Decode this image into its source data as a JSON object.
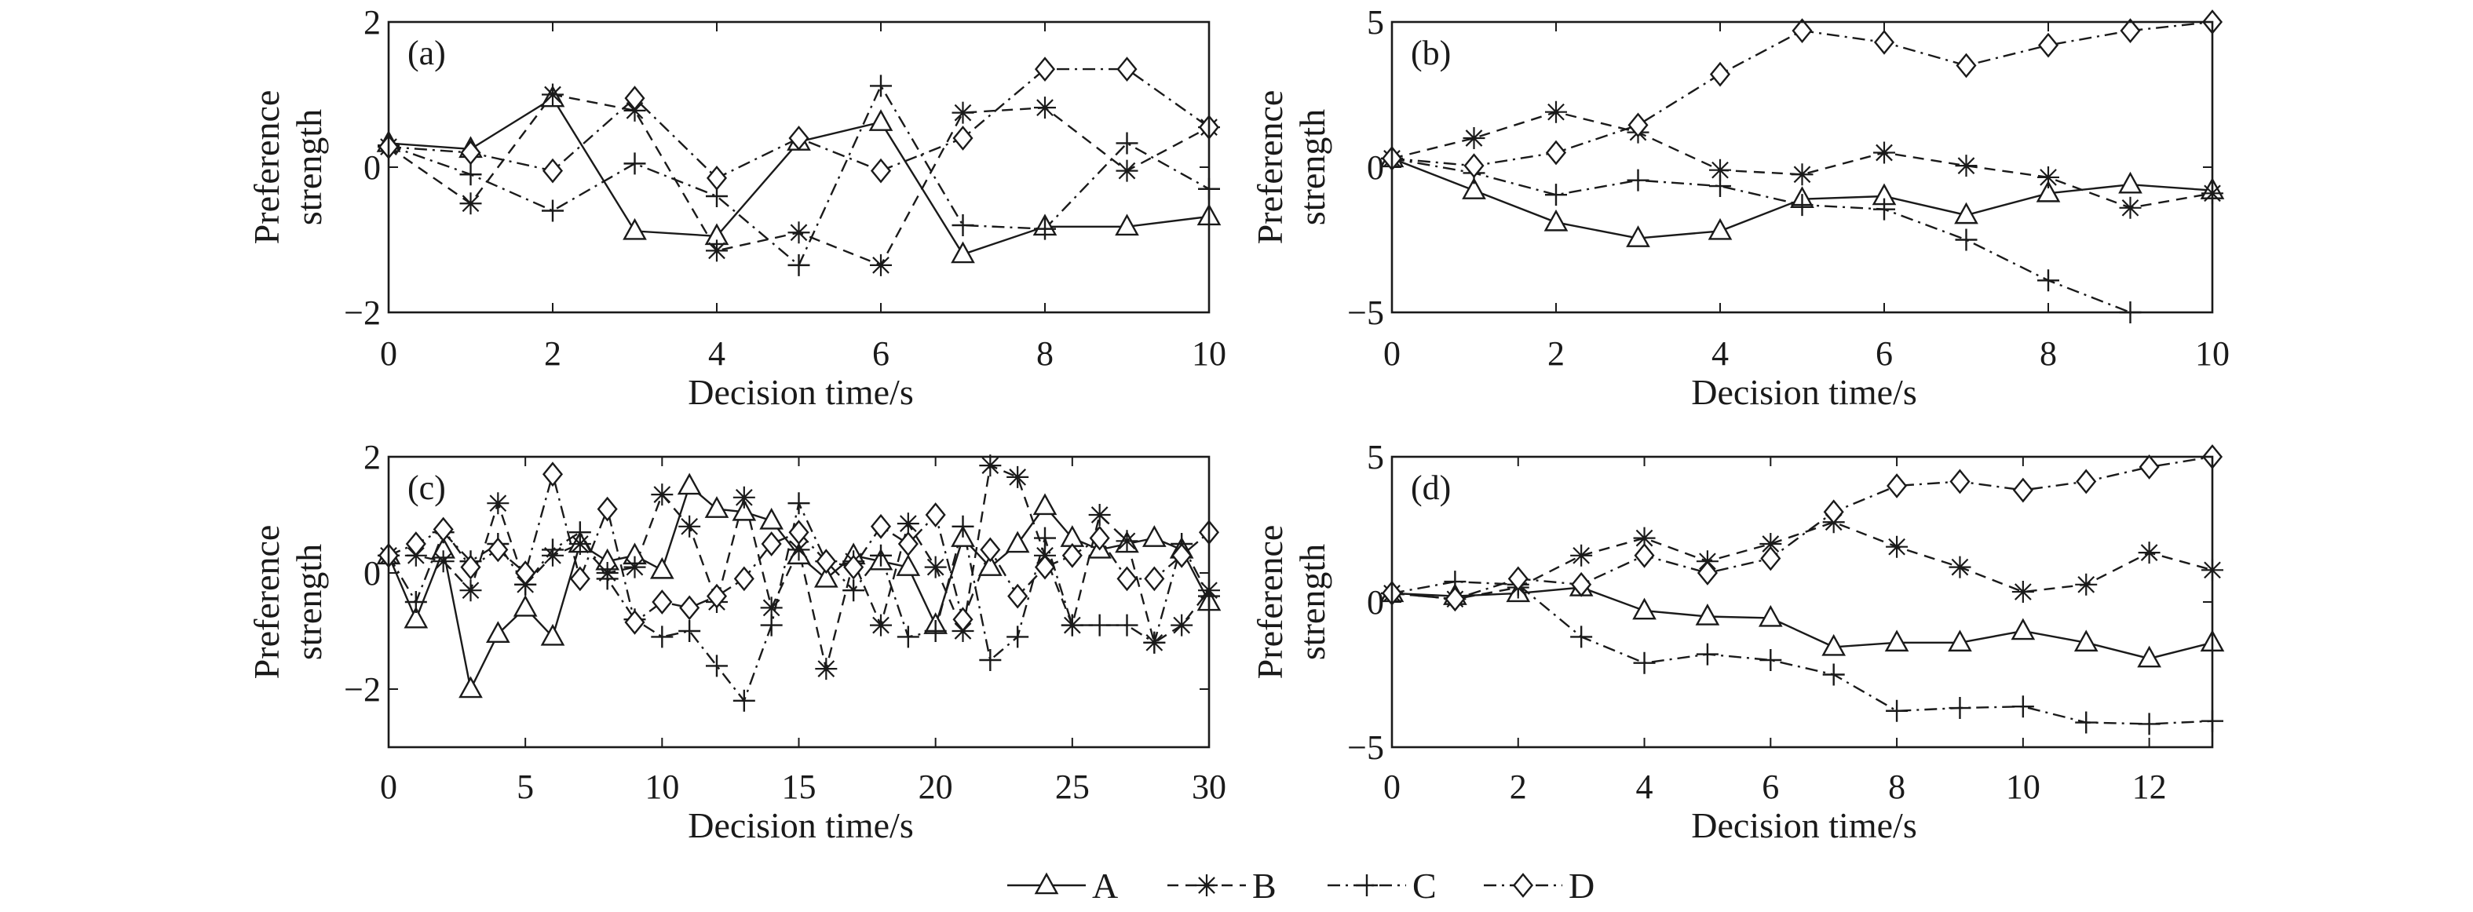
{
  "chart_data": [
    {
      "type": "line",
      "panel_label": "(a)",
      "xlabel": "Decision time/s",
      "ylabel": [
        "Preference",
        "strength"
      ],
      "xlim": [
        0,
        10
      ],
      "ylim": [
        -2,
        2
      ],
      "xticks": [
        0,
        2,
        4,
        6,
        8,
        10
      ],
      "xtick_labels": [
        "0",
        "2",
        "4",
        "6",
        "8",
        "10"
      ],
      "yticks": [
        -2,
        0,
        2
      ],
      "ytick_labels": [
        "−2",
        "0",
        "2"
      ],
      "series": [
        {
          "name": "A",
          "x": [
            0,
            1,
            2,
            3,
            4,
            5,
            6,
            7,
            8,
            9,
            10
          ],
          "y": [
            0.33,
            0.25,
            0.95,
            -0.88,
            -0.95,
            0.35,
            0.62,
            -1.2,
            -0.82,
            -0.82,
            -0.68
          ]
        },
        {
          "name": "B",
          "x": [
            0,
            1,
            2,
            3,
            4,
            5,
            6,
            7,
            8,
            9,
            10
          ],
          "y": [
            0.28,
            -0.5,
            1.0,
            0.78,
            -1.15,
            -0.9,
            -1.35,
            0.75,
            0.82,
            -0.05,
            0.55
          ]
        },
        {
          "name": "C",
          "x": [
            0,
            1,
            2,
            3,
            4,
            5,
            6,
            7,
            8,
            9,
            10
          ],
          "y": [
            0.3,
            -0.1,
            -0.6,
            0.05,
            -0.4,
            -1.35,
            1.12,
            -0.8,
            -0.85,
            0.33,
            -0.3
          ]
        },
        {
          "name": "D",
          "x": [
            0,
            1,
            2,
            3,
            4,
            5,
            6,
            7,
            8,
            9,
            10
          ],
          "y": [
            0.28,
            0.2,
            -0.05,
            0.95,
            -0.15,
            0.4,
            -0.05,
            0.4,
            1.35,
            1.35,
            0.55
          ]
        }
      ]
    },
    {
      "type": "line",
      "panel_label": "(b)",
      "xlabel": "Decision time/s",
      "ylabel": [
        "Preference",
        "strength"
      ],
      "xlim": [
        0,
        10
      ],
      "ylim": [
        -5,
        5
      ],
      "xticks": [
        0,
        2,
        4,
        6,
        8,
        10
      ],
      "xtick_labels": [
        "0",
        "2",
        "4",
        "6",
        "8",
        "10"
      ],
      "yticks": [
        -5,
        0,
        5
      ],
      "ytick_labels": [
        "−5",
        "0",
        "5"
      ],
      "series": [
        {
          "name": "A",
          "x": [
            0,
            1,
            2,
            3,
            4,
            5,
            6,
            7,
            8,
            9,
            10
          ],
          "y": [
            0.3,
            -0.8,
            -1.9,
            -2.45,
            -2.2,
            -1.1,
            -1.0,
            -1.65,
            -0.9,
            -0.6,
            -0.8
          ]
        },
        {
          "name": "B",
          "x": [
            0,
            1,
            2,
            3,
            4,
            5,
            6,
            7,
            8,
            9,
            10
          ],
          "y": [
            0.3,
            1.0,
            1.9,
            1.2,
            -0.1,
            -0.25,
            0.5,
            0.05,
            -0.35,
            -1.4,
            -0.9
          ]
        },
        {
          "name": "C",
          "x": [
            0,
            1,
            2,
            3,
            4,
            5,
            6,
            7,
            8,
            9
          ],
          "y": [
            0.3,
            -0.2,
            -0.95,
            -0.45,
            -0.65,
            -1.3,
            -1.45,
            -2.5,
            -3.9,
            -5.0
          ]
        },
        {
          "name": "D",
          "x": [
            0,
            1,
            2,
            3,
            4,
            5,
            6,
            7,
            8,
            9,
            10
          ],
          "y": [
            0.3,
            0.05,
            0.5,
            1.45,
            3.2,
            4.7,
            4.3,
            3.5,
            4.2,
            4.7,
            5.0
          ]
        }
      ]
    },
    {
      "type": "line",
      "panel_label": "(c)",
      "xlabel": "Decision time/s",
      "ylabel": [
        "Preference",
        "strength"
      ],
      "xlim": [
        0,
        30
      ],
      "ylim": [
        -3,
        2
      ],
      "xticks": [
        0,
        5,
        10,
        15,
        20,
        25,
        30
      ],
      "xtick_labels": [
        "0",
        "5",
        "10",
        "15",
        "20",
        "25",
        "30"
      ],
      "yticks": [
        -2,
        0,
        2
      ],
      "ytick_labels": [
        "−2",
        "0",
        "2"
      ],
      "series": [
        {
          "name": "A",
          "x": [
            0,
            1,
            2,
            3,
            4,
            5,
            6,
            7,
            8,
            9,
            10,
            11,
            12,
            13,
            14,
            15,
            16,
            17,
            18,
            19,
            20,
            21,
            22,
            23,
            24,
            25,
            26,
            27,
            28,
            29,
            30
          ],
          "y": [
            0.3,
            -0.8,
            0.4,
            -2.0,
            -1.05,
            -0.6,
            -1.1,
            0.5,
            0.2,
            0.3,
            0.05,
            1.5,
            1.1,
            1.05,
            0.9,
            0.3,
            -0.1,
            0.3,
            0.2,
            0.1,
            -0.9,
            0.6,
            0.1,
            0.5,
            1.15,
            0.6,
            0.4,
            0.5,
            0.6,
            0.4,
            -0.5
          ]
        },
        {
          "name": "B",
          "x": [
            0,
            1,
            2,
            3,
            4,
            5,
            6,
            7,
            8,
            9,
            10,
            11,
            12,
            13,
            14,
            15,
            16,
            17,
            18,
            19,
            20,
            21,
            22,
            23,
            24,
            25,
            26,
            27,
            28,
            29,
            30
          ],
          "y": [
            0.3,
            0.3,
            0.2,
            -0.3,
            1.2,
            -0.2,
            0.3,
            0.5,
            0.0,
            0.1,
            1.35,
            0.8,
            -0.5,
            1.3,
            -0.6,
            0.4,
            -1.65,
            0.2,
            -0.9,
            0.85,
            0.1,
            -1.0,
            1.85,
            1.65,
            0.3,
            -0.9,
            1.0,
            0.55,
            -1.2,
            -0.9,
            -0.3
          ]
        },
        {
          "name": "C",
          "x": [
            0,
            1,
            2,
            3,
            4,
            5,
            6,
            7,
            8,
            9,
            10,
            11,
            12,
            13,
            14,
            15,
            16,
            17,
            18,
            19,
            20,
            21,
            22,
            23,
            24,
            25,
            26,
            27,
            28,
            29,
            30
          ],
          "y": [
            0.3,
            -0.5,
            0.7,
            0.2,
            0.5,
            -0.2,
            0.4,
            0.7,
            -0.1,
            -0.8,
            -1.1,
            -1.0,
            -1.6,
            -2.2,
            -0.9,
            1.2,
            0.2,
            -0.3,
            0.3,
            -1.1,
            -1.0,
            0.8,
            -1.5,
            -1.1,
            0.6,
            -0.9,
            -0.9,
            -0.9,
            -1.2,
            0.5,
            -0.4
          ]
        },
        {
          "name": "D",
          "x": [
            0,
            1,
            2,
            3,
            4,
            5,
            6,
            7,
            8,
            9,
            10,
            11,
            12,
            13,
            14,
            15,
            16,
            17,
            18,
            19,
            20,
            21,
            22,
            23,
            24,
            25,
            26,
            27,
            28,
            29,
            30
          ],
          "y": [
            0.3,
            0.5,
            0.75,
            0.1,
            0.4,
            0.0,
            1.7,
            -0.1,
            1.1,
            -0.85,
            -0.5,
            -0.6,
            -0.4,
            -0.1,
            0.5,
            0.7,
            0.2,
            0.1,
            0.8,
            0.5,
            1.0,
            -0.8,
            0.4,
            -0.4,
            0.1,
            0.3,
            0.6,
            -0.1,
            -0.1,
            0.3,
            0.7
          ]
        }
      ]
    },
    {
      "type": "line",
      "panel_label": "(d)",
      "xlabel": "Decision time/s",
      "ylabel": [
        "Preference",
        "strength"
      ],
      "xlim": [
        0,
        13
      ],
      "ylim": [
        -5,
        5
      ],
      "xticks": [
        0,
        2,
        4,
        6,
        8,
        10,
        12
      ],
      "xtick_labels": [
        "0",
        "2",
        "4",
        "6",
        "8",
        "10",
        "12"
      ],
      "yticks": [
        -5,
        0,
        5
      ],
      "ytick_labels": [
        "−5",
        "0",
        "5"
      ],
      "series": [
        {
          "name": "A",
          "x": [
            0,
            1,
            2,
            3,
            4,
            5,
            6,
            7,
            8,
            9,
            10,
            11,
            12,
            13
          ],
          "y": [
            0.3,
            0.2,
            0.3,
            0.5,
            -0.3,
            -0.5,
            -0.55,
            -1.55,
            -1.4,
            -1.4,
            -1.0,
            -1.4,
            -1.95,
            -1.4
          ]
        },
        {
          "name": "B",
          "x": [
            0,
            1,
            2,
            3,
            4,
            5,
            6,
            7,
            8,
            9,
            10,
            11,
            12,
            13
          ],
          "y": [
            0.3,
            0.1,
            0.5,
            1.6,
            2.2,
            1.4,
            2.0,
            2.75,
            1.9,
            1.2,
            0.35,
            0.6,
            1.7,
            1.1
          ]
        },
        {
          "name": "C",
          "x": [
            0,
            1,
            2,
            3,
            4,
            5,
            6,
            7,
            8,
            9,
            10,
            11,
            12,
            13
          ],
          "y": [
            0.3,
            0.7,
            0.6,
            -1.2,
            -2.1,
            -1.8,
            -2.0,
            -2.5,
            -3.75,
            -3.65,
            -3.6,
            -4.15,
            -4.2,
            -4.1
          ]
        },
        {
          "name": "D",
          "x": [
            0,
            1,
            2,
            3,
            4,
            5,
            6,
            7,
            8,
            9,
            10,
            11,
            12,
            13
          ],
          "y": [
            0.3,
            0.1,
            0.8,
            0.6,
            1.6,
            1.0,
            1.5,
            3.1,
            4.0,
            4.15,
            3.85,
            4.15,
            4.65,
            5.0
          ]
        }
      ]
    }
  ],
  "legend": {
    "placement": "bottom-center",
    "entries": [
      {
        "name": "A",
        "marker": "triangle",
        "line": "solid"
      },
      {
        "name": "B",
        "marker": "asterisk",
        "line": "dashed"
      },
      {
        "name": "C",
        "marker": "plus",
        "line": "dash-dot"
      },
      {
        "name": "D",
        "marker": "diamond",
        "line": "dash-dot"
      }
    ]
  },
  "styles": {
    "line_color": "#1a1a1a",
    "axis_color": "#1a1a1a",
    "background": "#ffffff"
  }
}
